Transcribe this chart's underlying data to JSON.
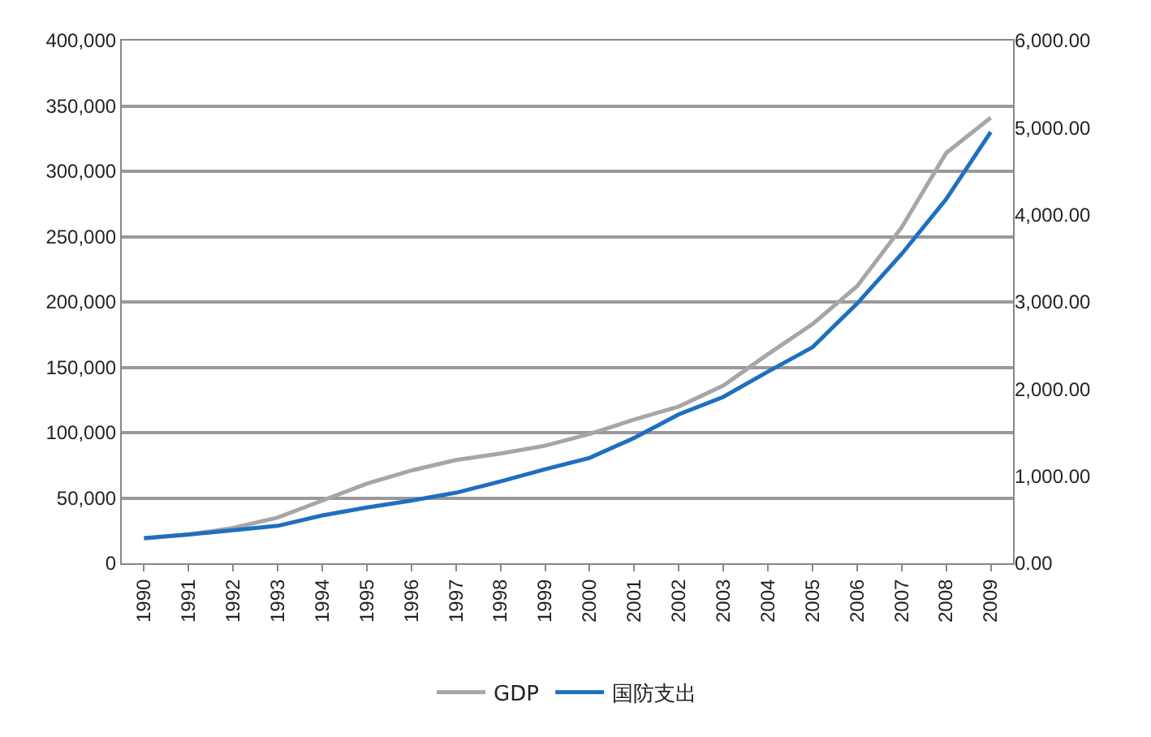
{
  "chart_data": {
    "type": "line",
    "categories": [
      "1990",
      "1991",
      "1992",
      "1993",
      "1994",
      "1995",
      "1996",
      "1997",
      "1998",
      "1999",
      "2000",
      "2001",
      "2002",
      "2003",
      "2004",
      "2005",
      "2006",
      "2007",
      "2008",
      "2009"
    ],
    "series": [
      {
        "name": "GDP",
        "color": "#a6a6a6",
        "values": [
          19000,
          22000,
          27000,
          35000,
          48000,
          61000,
          71000,
          79000,
          84000,
          90000,
          99000,
          110000,
          120000,
          136000,
          160000,
          183000,
          212000,
          257000,
          314000,
          341000
        ]
      },
      {
        "name": "国防支出",
        "color": "#1f6fc0",
        "axis": "y2",
        "values": [
          290,
          330,
          380,
          430,
          550,
          640,
          720,
          810,
          940,
          1080,
          1210,
          1440,
          1710,
          1910,
          2200,
          2480,
          2980,
          3550,
          4180,
          4950
        ]
      }
    ],
    "ylim": [
      0,
      400000
    ],
    "yticks": [
      {
        "value": 0,
        "label": "0"
      },
      {
        "value": 50000,
        "label": "50,000"
      },
      {
        "value": 100000,
        "label": "100,000"
      },
      {
        "value": 150000,
        "label": "150,000"
      },
      {
        "value": 200000,
        "label": "200,000"
      },
      {
        "value": 250000,
        "label": "250,000"
      },
      {
        "value": 300000,
        "label": "300,000"
      },
      {
        "value": 350000,
        "label": "350,000"
      },
      {
        "value": 400000,
        "label": "400,000"
      }
    ],
    "y2lim": [
      0,
      6000
    ],
    "y2ticks": [
      {
        "value": 0,
        "label": "0.00"
      },
      {
        "value": 1000,
        "label": "1,000.00"
      },
      {
        "value": 2000,
        "label": "2,000.00"
      },
      {
        "value": 3000,
        "label": "3,000.00"
      },
      {
        "value": 4000,
        "label": "4,000.00"
      },
      {
        "value": 5000,
        "label": "5,000.00"
      },
      {
        "value": 6000,
        "label": "6,000.00"
      }
    ],
    "grid": "y",
    "legend": "bottom",
    "marker": "none",
    "line_style": "solid"
  }
}
